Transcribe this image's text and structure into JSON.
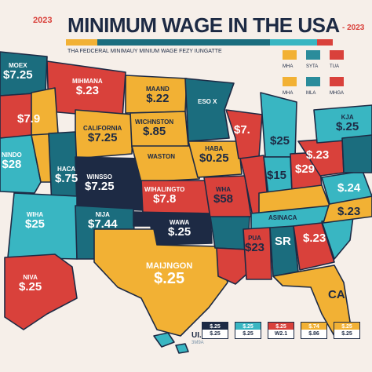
{
  "header": {
    "year_left": "2023",
    "title": "MINIMUM WAGE IN THE USA",
    "year_right": "- 2023",
    "subtitle": "THA FEDCERAL MINIMAUY MINIUM WAGE     FEZY IUNGATTE"
  },
  "legend_top": [
    {
      "label": "MHA",
      "color": "#f2b134"
    },
    {
      "label": "SYTA",
      "color": "#2b8c9b"
    },
    {
      "label": "TUA",
      "color": "#d9413b"
    },
    {
      "label": "MHA",
      "color": "#f2b134"
    },
    {
      "label": "MLA",
      "color": "#2b8c9b"
    },
    {
      "label": "MHGA",
      "color": "#d9413b"
    }
  ],
  "states": [
    {
      "id": "wa",
      "name": "MOEX",
      "wage": "$7.25",
      "color": "#1b6d7e"
    },
    {
      "id": "or",
      "name": "",
      "wage": "$7.9",
      "color": "#d9413b"
    },
    {
      "id": "ca",
      "name": "NINDO",
      "wage": "$28",
      "color": "#39b6c2"
    },
    {
      "id": "nv",
      "name": "",
      "wage": "",
      "color": "#f2b134"
    },
    {
      "id": "mt",
      "name": "MIHMANA",
      "wage": "$.23",
      "color": "#d9413b"
    },
    {
      "id": "id",
      "name": "",
      "wage": "",
      "color": "#f2b134"
    },
    {
      "id": "wy",
      "name": "CALIFORNIA",
      "wage": "$7.25",
      "color": "#f2b134"
    },
    {
      "id": "ut",
      "name": "HACA",
      "wage": "$.75",
      "color": "#1b6d7e"
    },
    {
      "id": "co",
      "name": "WINSSO",
      "wage": "$7.25",
      "color": "#1d2a44"
    },
    {
      "id": "az",
      "name": "WIHA",
      "wage": "$25",
      "color": "#39b6c2"
    },
    {
      "id": "nm",
      "name": "NIJA",
      "wage": "$7.44",
      "color": "#1b6d7e"
    },
    {
      "id": "nd",
      "name": "MAAND",
      "wage": "$.22",
      "color": "#f2b134"
    },
    {
      "id": "sd",
      "name": "WICHNSTON",
      "wage": "$.85",
      "color": "#f2b134"
    },
    {
      "id": "ne",
      "name": "WASTON",
      "wage": "",
      "color": "#f2b134"
    },
    {
      "id": "ks",
      "name": "WIHALINGTO",
      "wage": "$7.8",
      "color": "#d9413b"
    },
    {
      "id": "ok",
      "name": "WAWA",
      "wage": "$.25",
      "color": "#1d2a44"
    },
    {
      "id": "tx",
      "name": "MAIJNGON",
      "wage": "$.25",
      "color": "#f2b134"
    },
    {
      "id": "mn",
      "name": "ESO X",
      "wage": "",
      "color": "#1b6d7e"
    },
    {
      "id": "ia",
      "name": "HABA",
      "wage": "$0.25",
      "color": "#f2b134"
    },
    {
      "id": "mo",
      "name": "WHA",
      "wage": "$58",
      "color": "#d9413b"
    },
    {
      "id": "ar",
      "name": "",
      "wage": "",
      "color": "#1b6d7e"
    },
    {
      "id": "la",
      "name": "",
      "wage": "",
      "color": "#d9413b"
    },
    {
      "id": "wi",
      "name": "",
      "wage": "$7.",
      "color": "#d9413b"
    },
    {
      "id": "il",
      "name": "",
      "wage": "",
      "color": "#d9413b"
    },
    {
      "id": "mi",
      "name": "",
      "wage": "$25",
      "color": "#39b6c2"
    },
    {
      "id": "in",
      "name": "",
      "wage": "$15",
      "color": "#39b6c2"
    },
    {
      "id": "oh",
      "name": "",
      "wage": "$29",
      "color": "#d9413b"
    },
    {
      "id": "ky",
      "name": "",
      "wage": "",
      "color": "#f2b134"
    },
    {
      "id": "tn",
      "name": "ASINACA",
      "wage": "",
      "color": "#39b6c2"
    },
    {
      "id": "ms",
      "name": "PUA",
      "wage": "$23",
      "color": "#d9413b"
    },
    {
      "id": "al",
      "name": "",
      "wage": "SR",
      "color": "#1b6d7e"
    },
    {
      "id": "ga",
      "name": "",
      "wage": "$.23",
      "color": "#d9413b"
    },
    {
      "id": "fl",
      "name": "CA",
      "wage": "",
      "color": "#f2b134"
    },
    {
      "id": "sc",
      "name": "",
      "wage": "",
      "color": "#39b6c2"
    },
    {
      "id": "nc",
      "name": "",
      "wage": "$.23",
      "color": "#f2b134"
    },
    {
      "id": "va",
      "name": "",
      "wage": "$.24",
      "color": "#39b6c2"
    },
    {
      "id": "pa",
      "name": "",
      "wage": "$.23",
      "color": "#d9413b"
    },
    {
      "id": "ny",
      "name": "KJA",
      "wage": "$.25",
      "color": "#39b6c2"
    },
    {
      "id": "ne_states",
      "name": "",
      "wage": "",
      "color": "#1b6d7e"
    },
    {
      "id": "ak",
      "name": "NIVA",
      "wage": "$.25",
      "color": "#d9413b"
    },
    {
      "id": "hi",
      "name": "",
      "wage": "",
      "color": "#39b6c2"
    }
  ],
  "ula": {
    "label": "UI.A",
    "sub": "3M9A"
  },
  "bottom_legend": [
    {
      "top": "$.25",
      "bottom": "$.25",
      "color": "#1d2a44"
    },
    {
      "top": "$.25",
      "bottom": "$.25",
      "color": "#39b6c2"
    },
    {
      "top": "$.25",
      "bottom": "W2.1",
      "color": "#d9413b"
    },
    {
      "top": "$.74",
      "bottom": "$.86",
      "color": "#f2b134"
    },
    {
      "top": "$.25",
      "bottom": "$.25",
      "color": "#f2b134"
    }
  ]
}
